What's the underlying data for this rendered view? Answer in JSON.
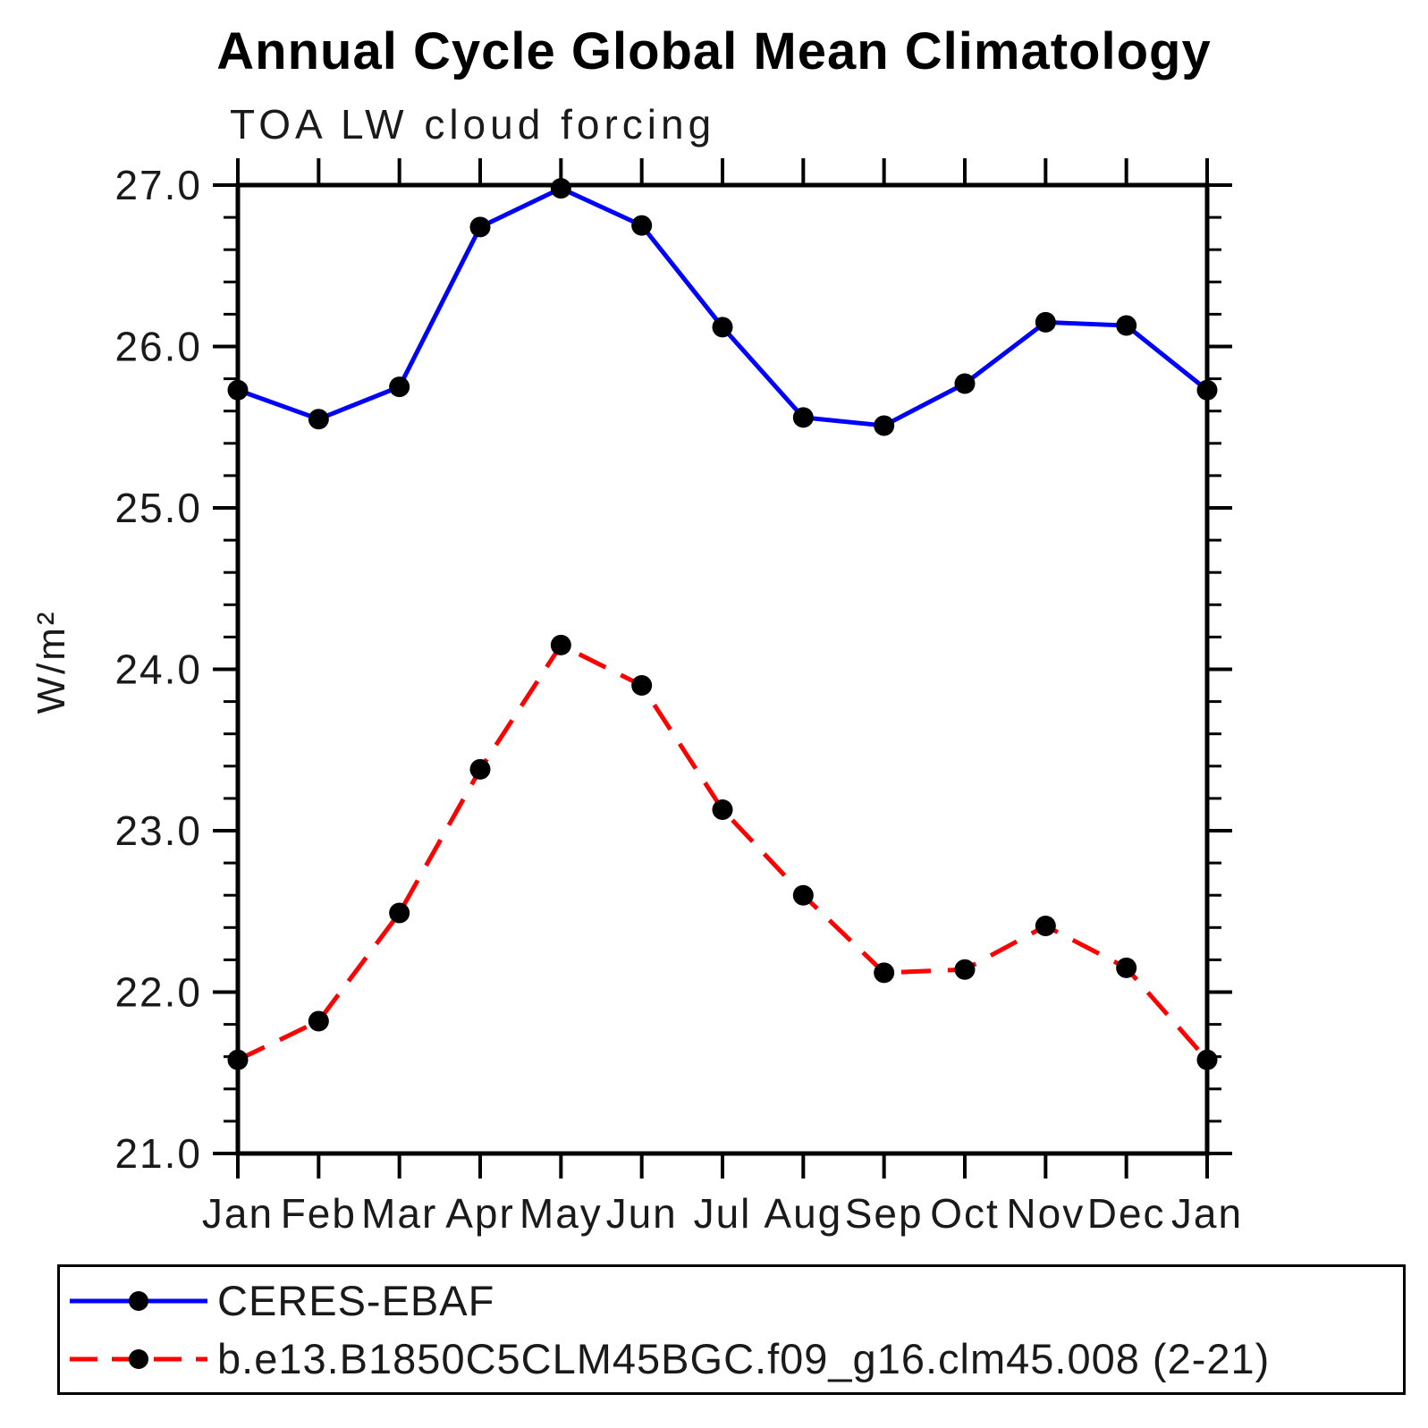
{
  "title": "Annual Cycle Global Mean Climatology",
  "subtitle": "TOA LW cloud forcing",
  "ylabel": "W/m²",
  "chart_data": {
    "type": "line",
    "categories": [
      "Jan",
      "Feb",
      "Mar",
      "Apr",
      "May",
      "Jun",
      "Jul",
      "Aug",
      "Sep",
      "Oct",
      "Nov",
      "Dec",
      "Jan"
    ],
    "series": [
      {
        "name": "CERES-EBAF",
        "color": "#0000ff",
        "line_style": "solid",
        "marker": "circle",
        "marker_color": "#000000",
        "values": [
          25.73,
          25.55,
          25.75,
          26.74,
          26.98,
          26.75,
          26.12,
          25.56,
          25.51,
          25.77,
          26.15,
          26.13,
          25.73
        ]
      },
      {
        "name": "b.e13.B1850C5CLM45BGC.f09_g16.clm45.008 (2-21)",
        "color": "#ff0000",
        "line_style": "dashed",
        "marker": "circle",
        "marker_color": "#000000",
        "values": [
          21.58,
          21.82,
          22.49,
          23.38,
          24.15,
          23.9,
          23.13,
          22.6,
          22.12,
          22.14,
          22.41,
          22.15,
          21.58
        ]
      }
    ],
    "xlabel": "",
    "ylabel": "W/m²",
    "ylim": [
      21.0,
      27.0
    ],
    "yticks": [
      21.0,
      22.0,
      23.0,
      24.0,
      25.0,
      26.0,
      27.0
    ],
    "ytick_labels": [
      "21.0",
      "22.0",
      "23.0",
      "24.0",
      "25.0",
      "26.0",
      "27.0"
    ],
    "minor_tick_step": 0.2,
    "grid": false,
    "frame": "box-with-outward-ticks",
    "legend_position": "bottom"
  }
}
